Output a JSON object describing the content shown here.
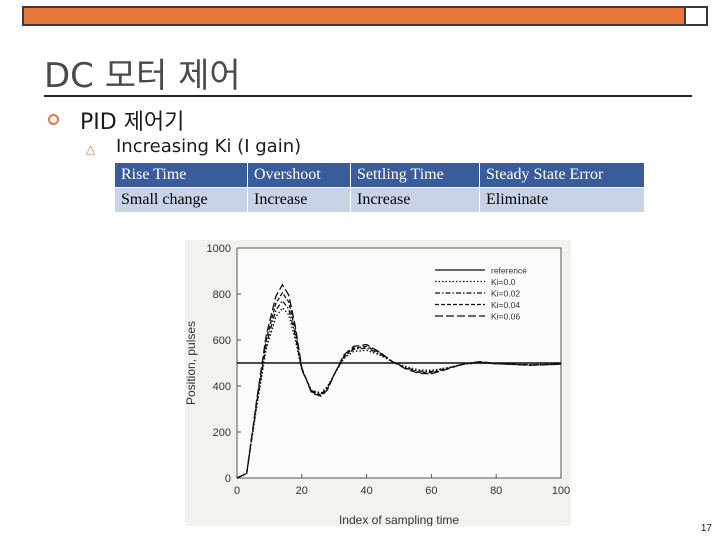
{
  "slide": {
    "title": "DC 모터 제어",
    "bullet_level1": "PID  제어기",
    "bullet_level2": "Increasing Ki  (I gain)",
    "page_number": "17",
    "accent_color": "#e8773a"
  },
  "table": {
    "headers": [
      "Rise Time",
      "Overshoot",
      "Settling Time",
      "Steady State Error"
    ],
    "row": [
      "Small change",
      "Increase",
      "Increase",
      "Eliminate"
    ],
    "header_color": "#3b5c9a",
    "row_color": "#c9d3e6"
  },
  "chart_data": {
    "type": "line",
    "xlabel": "Index of sampling time",
    "ylabel": "Position, pulses",
    "xlim": [
      0,
      100
    ],
    "ylim": [
      0,
      1000
    ],
    "xticks": [
      "0",
      "20",
      "40",
      "60",
      "80",
      "100"
    ],
    "yticks": [
      "0",
      "200",
      "400",
      "600",
      "800",
      "1000"
    ],
    "legend_position": "top-right",
    "grid": false,
    "series": [
      {
        "name": "reference",
        "style": "solid",
        "x": [
          0,
          100
        ],
        "y": [
          500,
          500
        ]
      },
      {
        "name": "Ki=0.0",
        "style": "dotted",
        "x": [
          0,
          3,
          6,
          9,
          12,
          14,
          16,
          18,
          20,
          23,
          26,
          28,
          30,
          33,
          36,
          40,
          44,
          48,
          52,
          56,
          60,
          65,
          70,
          75,
          80,
          90,
          100
        ],
        "y": [
          0,
          20,
          300,
          560,
          700,
          740,
          710,
          600,
          470,
          380,
          370,
          400,
          450,
          520,
          550,
          555,
          535,
          505,
          485,
          470,
          468,
          480,
          495,
          500,
          497,
          493,
          495
        ]
      },
      {
        "name": "Ki=0.02",
        "style": "dash-dot",
        "x": [
          0,
          3,
          6,
          9,
          12,
          14,
          16,
          18,
          20,
          23,
          26,
          28,
          30,
          33,
          36,
          40,
          44,
          48,
          52,
          56,
          60,
          65,
          70,
          75,
          80,
          90,
          100
        ],
        "y": [
          0,
          20,
          310,
          580,
          730,
          770,
          735,
          620,
          470,
          380,
          365,
          395,
          450,
          525,
          560,
          565,
          540,
          505,
          480,
          465,
          463,
          478,
          495,
          502,
          497,
          492,
          495
        ]
      },
      {
        "name": "Ki=0.04",
        "style": "dashed",
        "x": [
          0,
          3,
          6,
          9,
          12,
          14,
          16,
          18,
          20,
          23,
          26,
          28,
          30,
          33,
          36,
          40,
          44,
          48,
          52,
          56,
          60,
          65,
          70,
          75,
          80,
          90,
          100
        ],
        "y": [
          0,
          20,
          320,
          600,
          760,
          805,
          765,
          640,
          475,
          375,
          360,
          390,
          450,
          530,
          565,
          572,
          545,
          505,
          478,
          460,
          458,
          476,
          496,
          504,
          497,
          491,
          495
        ]
      },
      {
        "name": "Ki=0.06",
        "style": "long-dash",
        "x": [
          0,
          3,
          6,
          9,
          12,
          14,
          16,
          18,
          20,
          23,
          26,
          28,
          30,
          33,
          36,
          40,
          44,
          48,
          52,
          56,
          60,
          65,
          70,
          75,
          80,
          90,
          100
        ],
        "y": [
          0,
          20,
          330,
          620,
          790,
          840,
          795,
          660,
          480,
          370,
          355,
          385,
          450,
          535,
          572,
          580,
          548,
          506,
          475,
          455,
          453,
          474,
          497,
          506,
          498,
          490,
          495
        ]
      }
    ]
  }
}
